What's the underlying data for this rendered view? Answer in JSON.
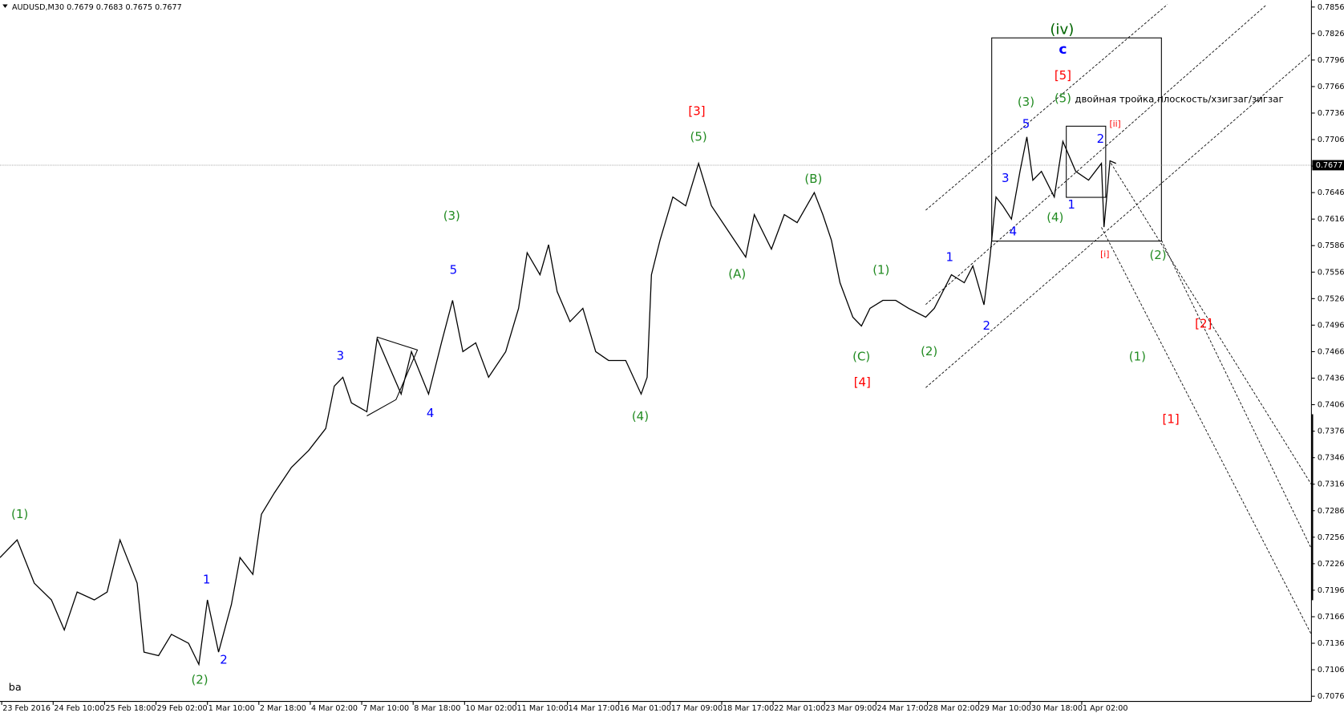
{
  "chart_data": {
    "type": "line",
    "title": "AUDUSD,M30 0.7679 0.7683 0.7675 0.7677",
    "corner_label": "ba",
    "x": [
      0,
      10,
      20,
      30,
      37.5,
      45,
      55,
      62.5,
      70,
      80,
      84,
      92.5,
      100,
      110,
      116,
      121,
      127.5,
      135,
      140,
      147.5,
      152.5,
      160,
      170,
      180,
      190,
      195,
      200,
      205,
      214,
      220,
      227.5,
      234,
      240,
      250,
      257.5,
      264,
      270,
      277.5,
      285,
      295,
      302.5,
      307.5,
      315,
      320,
      325,
      332.5,
      340,
      347.5,
      355,
      365,
      374,
      377.5,
      380,
      385,
      392.5,
      400,
      407.5,
      415,
      425,
      435,
      440,
      450,
      457.5,
      465,
      475,
      480,
      485,
      490,
      497.5,
      502.5,
      507.5,
      515,
      522.5,
      530,
      540,
      545,
      550,
      555,
      562.5,
      567.5,
      574,
      577.5,
      581,
      585,
      590,
      595,
      599,
      602.5,
      607.5,
      615,
      620,
      627.5,
      635,
      642.5,
      644,
      647.5,
      651
    ],
    "values": [
      0.7233,
      0.7253,
      0.7204,
      0.7185,
      0.7151,
      0.7194,
      0.7185,
      0.7194,
      0.7253,
      0.7204,
      0.7126,
      0.7122,
      0.7146,
      0.7136,
      0.7112,
      0.7185,
      0.7126,
      0.718,
      0.7233,
      0.7214,
      0.7282,
      0.7306,
      0.7335,
      0.7354,
      0.7379,
      0.7427,
      0.7437,
      0.7408,
      0.7398,
      0.7481,
      0.7447,
      0.7418,
      0.7466,
      0.7418,
      0.7476,
      0.7524,
      0.7466,
      0.7476,
      0.7437,
      0.7466,
      0.7515,
      0.7578,
      0.7553,
      0.7587,
      0.7534,
      0.75,
      0.7515,
      0.7466,
      0.7456,
      0.7456,
      0.7418,
      0.7437,
      0.7553,
      0.7592,
      0.7641,
      0.7631,
      0.7679,
      0.7631,
      0.7602,
      0.7573,
      0.7621,
      0.7582,
      0.7621,
      0.7612,
      0.7646,
      0.7621,
      0.7592,
      0.7544,
      0.7505,
      0.7495,
      0.7515,
      0.7524,
      0.7524,
      0.7515,
      0.7505,
      0.7515,
      0.7534,
      0.7553,
      0.7544,
      0.7563,
      0.7519,
      0.7573,
      0.7641,
      0.7631,
      0.7616,
      0.767,
      0.7709,
      0.766,
      0.767,
      0.7641,
      0.7704,
      0.767,
      0.766,
      0.7679,
      0.7607,
      0.7682,
      0.7679
    ],
    "color": "#000000",
    "last_price": 0.7677,
    "xlim": [
      0,
      765
    ],
    "ylim": [
      0.7076,
      0.7856
    ],
    "yticks": [
      0.7856,
      0.7826,
      0.7796,
      0.7766,
      0.7736,
      0.7706,
      0.7676,
      0.7646,
      0.7616,
      0.7586,
      0.7556,
      0.7526,
      0.7496,
      0.7466,
      0.7436,
      0.7406,
      0.7376,
      0.7346,
      0.7316,
      0.7286,
      0.7256,
      0.7226,
      0.7196,
      0.7166,
      0.7136,
      0.7106,
      0.7076
    ],
    "xticks": [
      {
        "value": 1,
        "label": "23 Feb 2016"
      },
      {
        "value": 31,
        "label": "24 Feb 10:00"
      },
      {
        "value": 61,
        "label": "25 Feb 18:00"
      },
      {
        "value": 91,
        "label": "29 Feb 02:00"
      },
      {
        "value": 121,
        "label": "1 Mar 10:00"
      },
      {
        "value": 151,
        "label": "2 Mar 18:00"
      },
      {
        "value": 181,
        "label": "4 Mar 02:00"
      },
      {
        "value": 211,
        "label": "7 Mar 10:00"
      },
      {
        "value": 241,
        "label": "8 Mar 18:00"
      },
      {
        "value": 271,
        "label": "10 Mar 02:00"
      },
      {
        "value": 301,
        "label": "11 Mar 10:00"
      },
      {
        "value": 331,
        "label": "14 Mar 17:00"
      },
      {
        "value": 361,
        "label": "16 Mar 01:00"
      },
      {
        "value": 391,
        "label": "17 Mar 09:00"
      },
      {
        "value": 421,
        "label": "18 Mar 17:00"
      },
      {
        "value": 451,
        "label": "22 Mar 01:00"
      },
      {
        "value": 481,
        "label": "23 Mar 09:00"
      },
      {
        "value": 511,
        "label": "24 Mar 17:00"
      },
      {
        "value": 541,
        "label": "28 Mar 02:00"
      },
      {
        "value": 571,
        "label": "29 Mar 10:00"
      },
      {
        "value": 601,
        "label": "30 Mar 18:00"
      },
      {
        "value": 631,
        "label": "1 Apr 02:00"
      }
    ],
    "annotations": [
      {
        "text": "(1)",
        "color": "#228b22"
      },
      {
        "text": "(2)",
        "color": "#228b22"
      },
      {
        "text": "(3)",
        "color": "#228b22"
      },
      {
        "text": "(4)",
        "color": "#228b22"
      },
      {
        "text": "(5)",
        "color": "#228b22"
      },
      {
        "text": "(A)",
        "color": "#228b22"
      },
      {
        "text": "(B)",
        "color": "#228b22"
      },
      {
        "text": "(C)",
        "color": "#228b22"
      },
      {
        "text": "(1)",
        "color": "#228b22"
      },
      {
        "text": "(2)",
        "color": "#228b22"
      },
      {
        "text": "(3)",
        "color": "#228b22"
      },
      {
        "text": "(4)",
        "color": "#228b22"
      },
      {
        "text": "(5)",
        "color": "#228b22"
      },
      {
        "text": "(iv)",
        "color": "#006400"
      },
      {
        "text": "(1)",
        "color": "#228b22"
      },
      {
        "text": "(2)",
        "color": "#228b22"
      },
      {
        "text": "1",
        "color": "#0000ff"
      },
      {
        "text": "2",
        "color": "#0000ff"
      },
      {
        "text": "3",
        "color": "#0000ff"
      },
      {
        "text": "4",
        "color": "#0000ff"
      },
      {
        "text": "5",
        "color": "#0000ff"
      },
      {
        "text": "1",
        "color": "#0000ff"
      },
      {
        "text": "2",
        "color": "#0000ff"
      },
      {
        "text": "3",
        "color": "#0000ff"
      },
      {
        "text": "4",
        "color": "#0000ff"
      },
      {
        "text": "5",
        "color": "#0000ff"
      },
      {
        "text": "1",
        "color": "#0000ff"
      },
      {
        "text": "2",
        "color": "#0000ff"
      },
      {
        "text": "c",
        "color": "#0000ff"
      },
      {
        "text": "[3]",
        "color": "#ff0000"
      },
      {
        "text": "[4]",
        "color": "#ff0000"
      },
      {
        "text": "[5]",
        "color": "#ff0000"
      },
      {
        "text": "[ii]",
        "color": "#ff0000"
      },
      {
        "text": "[i]",
        "color": "#ff0000"
      },
      {
        "text": "[2]",
        "color": "#ff0000"
      },
      {
        "text": "[1]",
        "color": "#ff0000"
      },
      {
        "text": "двойная тройка плоскость/хзигзаг/зигзаг",
        "color": "#000000"
      }
    ]
  }
}
